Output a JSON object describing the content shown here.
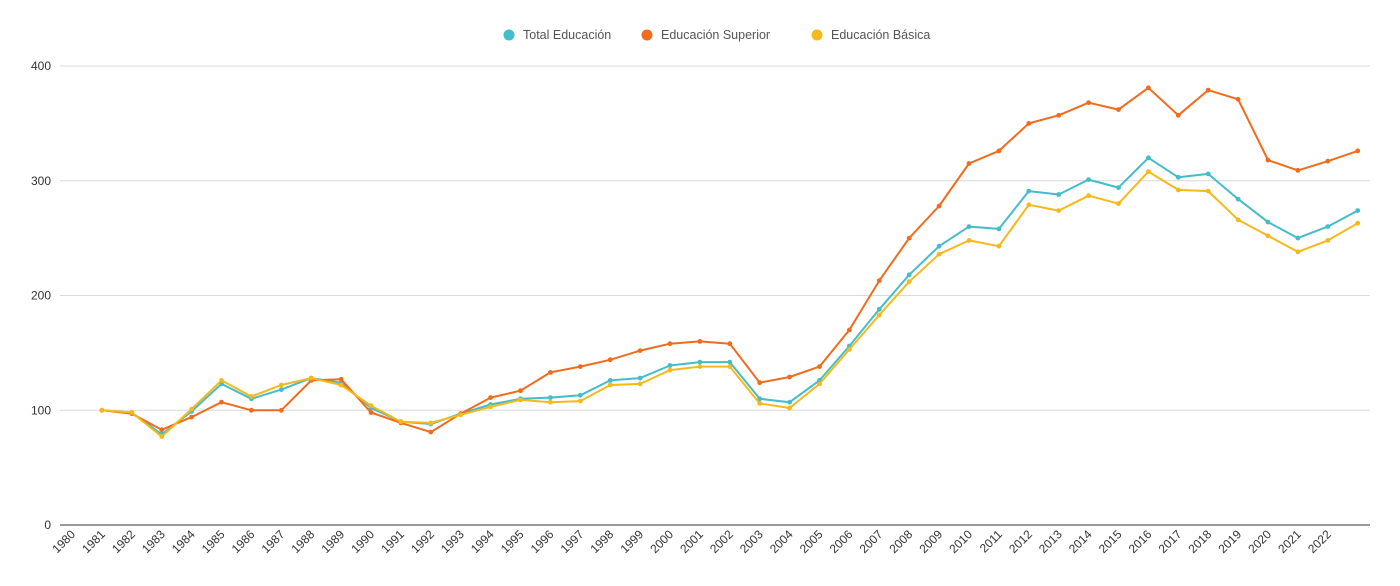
{
  "chart_data": {
    "type": "line",
    "title": "",
    "xlabel": "",
    "ylabel": "",
    "ylim": [
      0,
      400
    ],
    "y_ticks": [
      0,
      100,
      200,
      300,
      400
    ],
    "grid": "horizontal",
    "legend_position": "top-center",
    "x_tick_labels": [
      "1980",
      "1981",
      "1982",
      "1983",
      "1984",
      "1985",
      "1986",
      "1987",
      "1988",
      "1989",
      "1990",
      "1991",
      "1992",
      "1993",
      "1994",
      "1995",
      "1996",
      "1997",
      "1998",
      "1999",
      "2000",
      "2001",
      "2002",
      "2003",
      "2004",
      "2005",
      "2006",
      "2007",
      "2008",
      "2009",
      "2010",
      "2011",
      "2012",
      "2013",
      "2014",
      "2015",
      "2016",
      "2017",
      "2018",
      "2019",
      "2020",
      "2021",
      "2022"
    ],
    "x": [
      "1981",
      "1982",
      "1983",
      "1984",
      "1985",
      "1986",
      "1987",
      "1988",
      "1989",
      "1990",
      "1991",
      "1992",
      "1993",
      "1994",
      "1995",
      "1996",
      "1997",
      "1998",
      "1999",
      "2000",
      "2001",
      "2002",
      "2003",
      "2004",
      "2005",
      "2006",
      "2007",
      "2008",
      "2009",
      "2010",
      "2011",
      "2012",
      "2013",
      "2014",
      "2015",
      "2016",
      "2017",
      "2018",
      "2019",
      "2020",
      "2021",
      "2022",
      "2023"
    ],
    "series": [
      {
        "name": "Total Educación",
        "color": "#45bcc9",
        "values": [
          100,
          98,
          79,
          99,
          123,
          110,
          118,
          128,
          124,
          102,
          90,
          88,
          97,
          105,
          110,
          111,
          113,
          126,
          128,
          139,
          142,
          142,
          110,
          107,
          126,
          156,
          188,
          218,
          243,
          260,
          258,
          291,
          288,
          301,
          294,
          320,
          303,
          306,
          284,
          264,
          250,
          260,
          274
        ]
      },
      {
        "name": "Educación Superior",
        "color": "#f26b1d",
        "values": [
          100,
          97,
          83,
          94,
          107,
          100,
          100,
          126,
          127,
          98,
          89,
          81,
          97,
          111,
          117,
          133,
          138,
          144,
          152,
          158,
          160,
          158,
          124,
          129,
          138,
          170,
          213,
          250,
          278,
          315,
          326,
          350,
          357,
          368,
          362,
          381,
          357,
          379,
          371,
          318,
          309,
          317,
          326
        ]
      },
      {
        "name": "Educación Básica",
        "color": "#f5b919",
        "values": [
          100,
          98,
          77,
          101,
          126,
          112,
          122,
          128,
          122,
          104,
          90,
          89,
          96,
          103,
          109,
          107,
          108,
          122,
          123,
          135,
          138,
          138,
          106,
          102,
          123,
          153,
          183,
          212,
          236,
          248,
          243,
          279,
          274,
          287,
          280,
          308,
          292,
          291,
          266,
          252,
          238,
          248,
          263
        ]
      }
    ]
  }
}
